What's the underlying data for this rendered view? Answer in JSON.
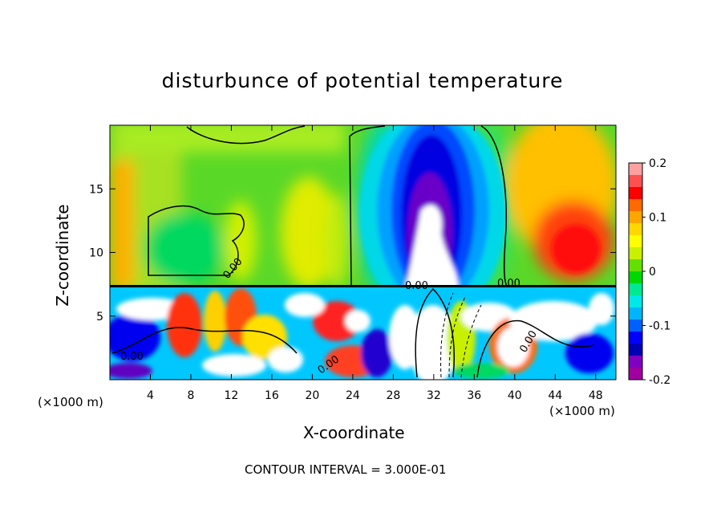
{
  "title": "disturbunce of potential temperature",
  "x_unit_left": "(×1000 m)",
  "x_unit_right": "(×1000 m)",
  "contour_interval": "CONTOUR INTERVAL = 3.000E-01",
  "chart_data": {
    "type": "heatmap",
    "xlabel": "X-coordinate",
    "ylabel": "Z-coordinate",
    "xlim": [
      0,
      50
    ],
    "ylim": [
      0,
      20
    ],
    "xticks": [
      4,
      8,
      12,
      16,
      20,
      24,
      28,
      32,
      36,
      40,
      44,
      48
    ],
    "yticks": [
      5,
      10,
      15
    ],
    "colorbar": {
      "range": [
        -0.2,
        0.2
      ],
      "tick_values": [
        0.2,
        0.1,
        0,
        -0.1,
        -0.2
      ],
      "tick_labels": [
        "0.2",
        "0.1",
        "0",
        "-0.1",
        "-0.2"
      ],
      "colors": [
        "#ffa0a0",
        "#ff5050",
        "#ff0000",
        "#ff6a00",
        "#ffa500",
        "#ffd700",
        "#ffff00",
        "#c8f000",
        "#64e000",
        "#00d800",
        "#00e890",
        "#00e8e8",
        "#00b4ff",
        "#0060ff",
        "#0000ff",
        "#0000b4",
        "#8000c0",
        "#a000a0"
      ]
    },
    "contour_labels": [
      "0.00",
      "0.00",
      "0.00",
      "0.00",
      "0.00",
      "0.00"
    ]
  },
  "colors": {
    "positive_anomaly": "#ff2020",
    "zero": "#3ce040",
    "negative_anomaly": "#0000ff",
    "min_region": "#ffffff"
  }
}
